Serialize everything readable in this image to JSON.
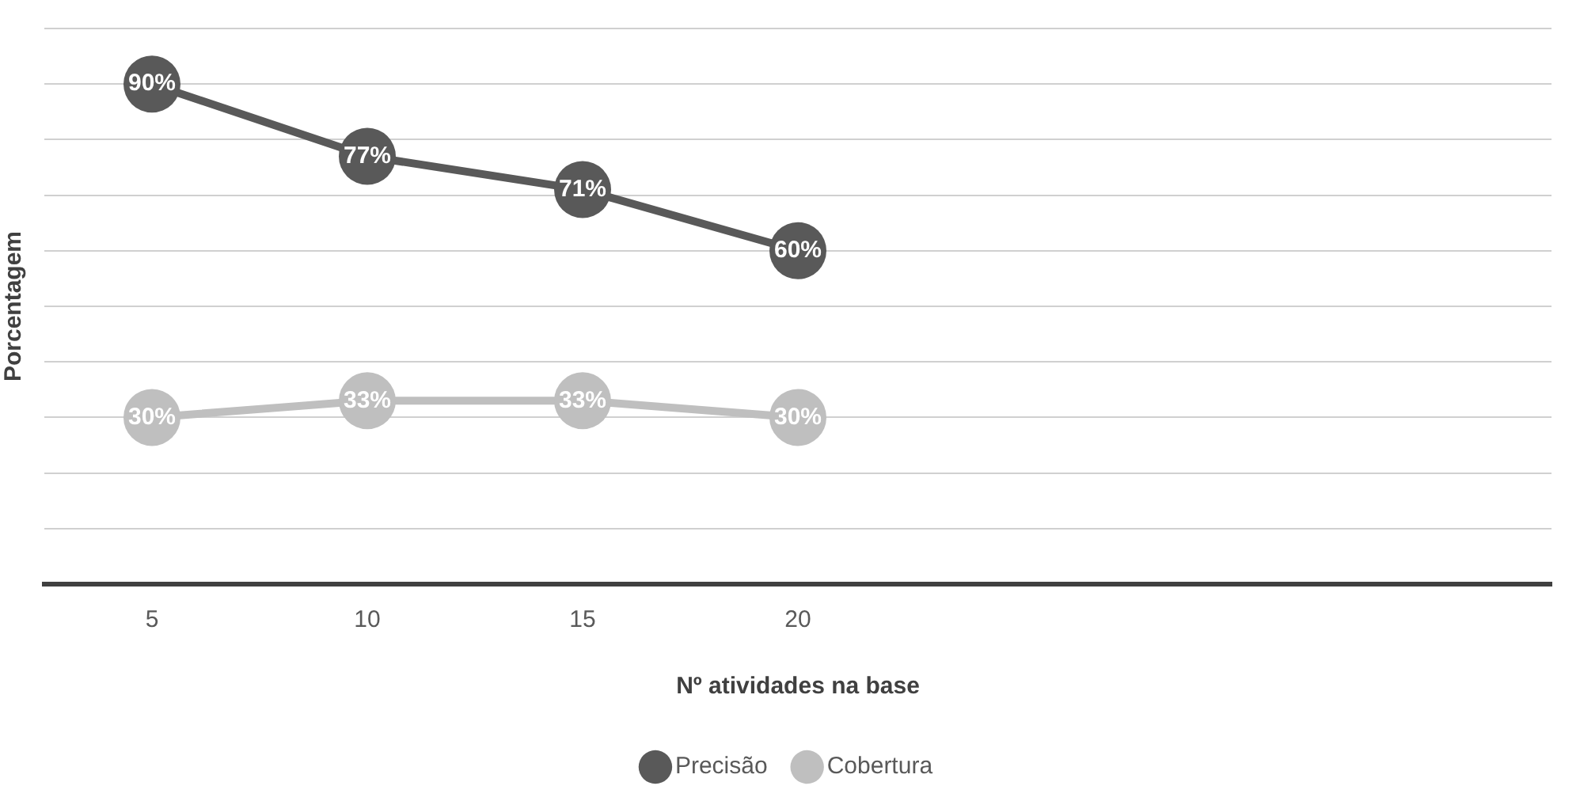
{
  "chart_data": {
    "type": "line",
    "xlabel": "Nº atividades na base",
    "ylabel": "Porcentagem",
    "categories": [
      "5",
      "10",
      "15",
      "20",
      null,
      null,
      null
    ],
    "series": [
      {
        "name": "Precisão",
        "color": "#595959",
        "values": [
          90,
          77,
          71,
          60,
          null,
          null,
          null
        ],
        "value_labels": [
          "90%",
          "77%",
          "71%",
          "60%",
          null,
          null,
          null
        ]
      },
      {
        "name": "Cobertura",
        "color": "#bfbfbf",
        "values": [
          30,
          33,
          33,
          30,
          null,
          null,
          null
        ],
        "value_labels": [
          "30%",
          "33%",
          "33%",
          "30%",
          null,
          null,
          null
        ]
      }
    ],
    "ylim": [
      0,
      100
    ],
    "yticks": [
      {
        "value": 0,
        "label": null
      },
      {
        "value": 10,
        "label": null
      },
      {
        "value": 20,
        "label": null
      },
      {
        "value": 30,
        "label": null
      },
      {
        "value": 40,
        "label": null
      },
      {
        "value": 50,
        "label": null
      },
      {
        "value": 60,
        "label": null
      },
      {
        "value": 70,
        "label": null
      },
      {
        "value": 80,
        "label": null
      },
      {
        "value": 90,
        "label": null
      },
      {
        "value": 100,
        "label": null
      }
    ],
    "tick_labels": "x",
    "grid": "y",
    "legend": "bottom",
    "marker": "circle",
    "line_style": "solid"
  }
}
